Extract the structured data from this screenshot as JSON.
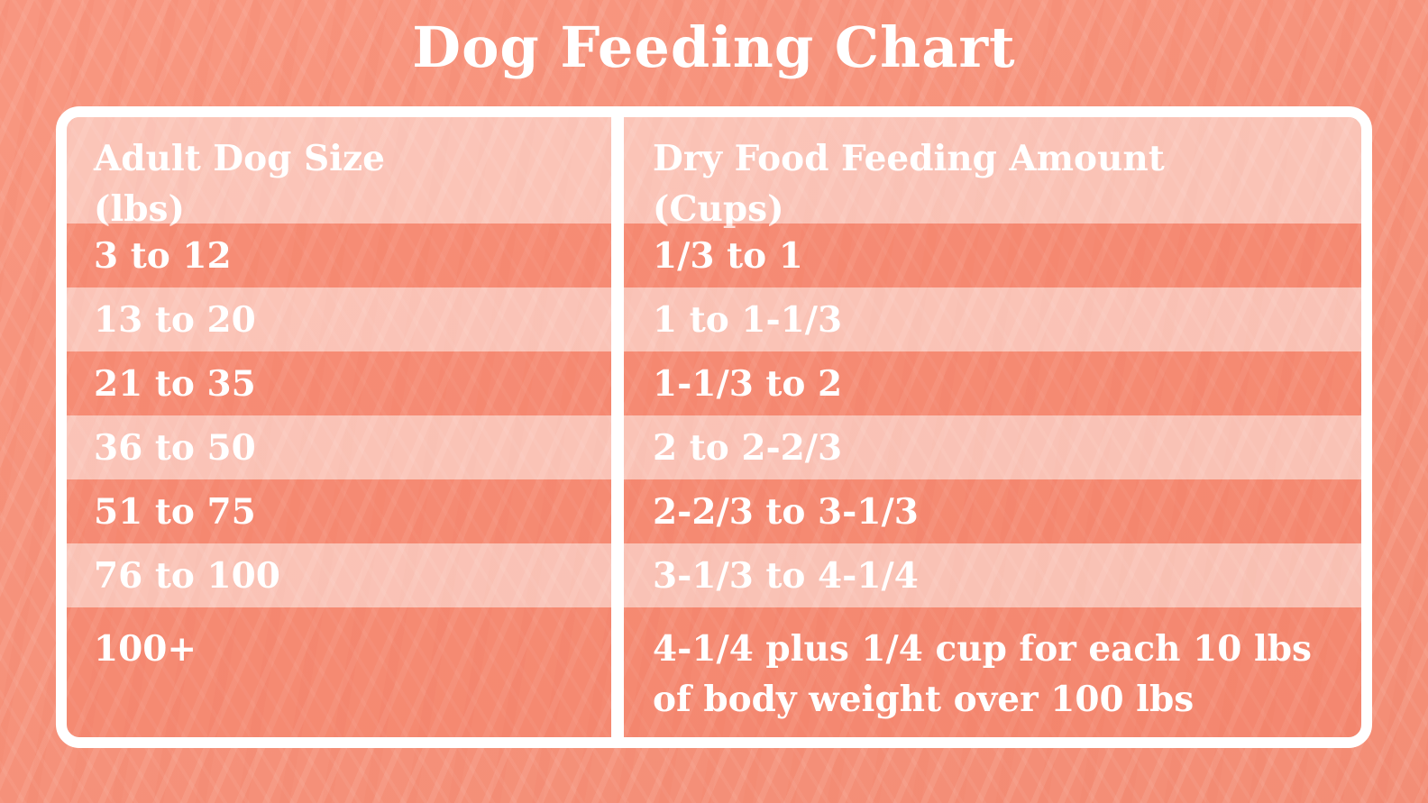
{
  "title": "Dog Feeding Chart",
  "colors": {
    "background": "#F89078",
    "frame": "#FFFFFF",
    "text": "#FFFFFF",
    "row_light_hex": "#FBBBA9",
    "row_dark_hex": "#F7866A"
  },
  "table": {
    "col1": {
      "line1": "Adult Dog Size",
      "line2": "(lbs)"
    },
    "col2": {
      "line1": "Dry Food Feeding Amount",
      "line2": "(Cups)"
    },
    "rows": [
      {
        "size": "3 to 12",
        "amount": "1/3 to 1"
      },
      {
        "size": "13 to 20",
        "amount": "1 to 1-1/3"
      },
      {
        "size": "21 to 35",
        "amount": "1-1/3 to 2"
      },
      {
        "size": "36 to 50",
        "amount": "2 to 2-2/3"
      },
      {
        "size": "51 to 75",
        "amount": "2-2/3 to 3-1/3"
      },
      {
        "size": "76 to 100",
        "amount": "3-1/3 to 4-1/4"
      },
      {
        "size": "100+",
        "amount": "4-1/4 plus 1/4 cup for each 10 lbs of body weight over 100 lbs"
      }
    ]
  },
  "chart_data": {
    "type": "table",
    "title": "Dog Feeding Chart",
    "columns": [
      "Adult Dog Size (lbs)",
      "Dry Food Feeding Amount (Cups)"
    ],
    "rows": [
      [
        "3 to 12",
        "1/3 to 1"
      ],
      [
        "13 to 20",
        "1 to 1-1/3"
      ],
      [
        "21 to 35",
        "1-1/3 to 2"
      ],
      [
        "36 to 50",
        "2 to 2-2/3"
      ],
      [
        "51 to 75",
        "2-2/3 to 3-1/3"
      ],
      [
        "76 to 100",
        "3-1/3 to 4-1/4"
      ],
      [
        "100+",
        "4-1/4 plus 1/4 cup for each 10 lbs of body weight over 100 lbs"
      ]
    ],
    "layout": {
      "row_striping": "alternating light/dark coral",
      "frame": "white rounded border",
      "legend_position": "none",
      "grid": "off"
    }
  }
}
